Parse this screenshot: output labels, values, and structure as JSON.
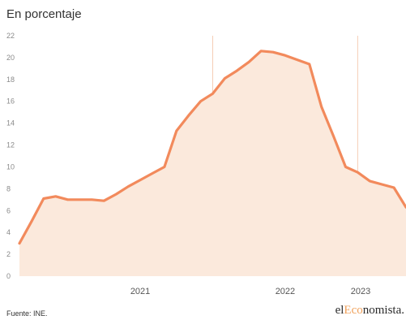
{
  "chart_data": {
    "type": "area",
    "title": "En porcentaje",
    "xlabel": "",
    "ylabel": "",
    "ylim": [
      0,
      22
    ],
    "yticks": [
      0,
      2,
      4,
      6,
      8,
      10,
      12,
      14,
      16,
      18,
      20,
      22
    ],
    "year_labels": [
      "2021",
      "2022",
      "2023"
    ],
    "grid": false,
    "x": [
      "2020-09",
      "2020-10",
      "2020-11",
      "2020-12",
      "2021-01",
      "2021-02",
      "2021-03",
      "2021-04",
      "2021-05",
      "2021-06",
      "2021-07",
      "2021-08",
      "2021-09",
      "2021-10",
      "2021-11",
      "2021-12",
      "2022-01",
      "2022-02",
      "2022-03",
      "2022-04",
      "2022-05",
      "2022-06",
      "2022-07",
      "2022-08",
      "2022-09",
      "2022-10",
      "2022-11",
      "2022-12",
      "2023-01",
      "2023-02",
      "2023-03",
      "2023-04",
      "2023-05"
    ],
    "series": [
      {
        "values": [
          3.0,
          5.0,
          7.1,
          7.3,
          7.0,
          7.0,
          7.0,
          6.9,
          7.5,
          8.2,
          8.8,
          9.4,
          10.0,
          13.3,
          14.7,
          16.0,
          16.7,
          18.1,
          18.8,
          19.6,
          20.6,
          20.5,
          20.2,
          19.8,
          19.4,
          15.5,
          12.8,
          10.0,
          9.5,
          8.7,
          8.4,
          8.1,
          6.3
        ]
      }
    ],
    "colors": {
      "line": "#f28a5c",
      "fill": "#fbe9dc",
      "divider": "#f5cdb5"
    }
  },
  "footer": {
    "source": "Fuente: INE.",
    "brand_prefix": "el",
    "brand_accent": "Eco",
    "brand_suffix": "nomista."
  }
}
